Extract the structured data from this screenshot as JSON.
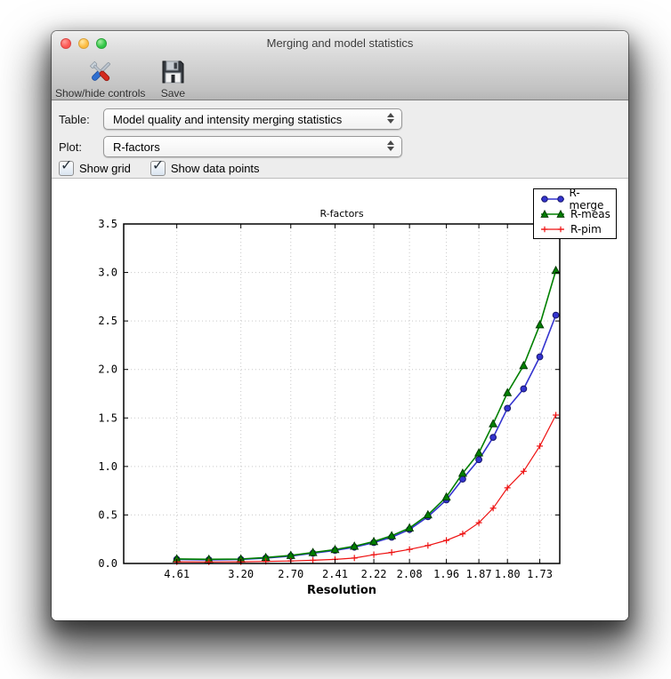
{
  "window": {
    "title": "Merging and model statistics"
  },
  "toolbar": {
    "buttons": [
      {
        "label": "Show/hide controls",
        "icon": "tools-icon"
      },
      {
        "label": "Save",
        "icon": "save-icon"
      }
    ]
  },
  "controls": {
    "table_label": "Table:",
    "table_value": "Model quality and intensity merging statistics",
    "plot_label": "Plot:",
    "plot_value": "R-factors",
    "checkboxes": [
      {
        "label": "Show grid",
        "checked": true
      },
      {
        "label": "Show data points",
        "checked": true
      }
    ]
  },
  "chart_data": {
    "type": "line",
    "title": "R-factors",
    "xlabel": "Resolution",
    "ylabel": "",
    "grid": true,
    "legend_position": "top-right",
    "x_axis_note": "resolution bins, spacing linear in 1/d^2",
    "xlim": [
      0.005,
      0.35
    ],
    "ylim": [
      0.0,
      3.5
    ],
    "yticks": [
      0.0,
      0.5,
      1.0,
      1.5,
      2.0,
      2.5,
      3.0,
      3.5
    ],
    "x": [
      0.047,
      0.0724,
      0.0977,
      0.1174,
      0.1372,
      0.1547,
      0.1722,
      0.1875,
      0.2029,
      0.217,
      0.2311,
      0.2457,
      0.2603,
      0.2732,
      0.286,
      0.2973,
      0.3086,
      0.3214,
      0.3342,
      0.3469
    ],
    "xticks": [
      {
        "index": 0,
        "label": "4.61"
      },
      {
        "index": 2,
        "label": "3.20"
      },
      {
        "index": 4,
        "label": "2.70"
      },
      {
        "index": 6,
        "label": "2.41"
      },
      {
        "index": 8,
        "label": "2.22"
      },
      {
        "index": 10,
        "label": "2.08"
      },
      {
        "index": 12,
        "label": "1.96"
      },
      {
        "index": 14,
        "label": "1.87"
      },
      {
        "index": 16,
        "label": "1.80"
      },
      {
        "index": 18,
        "label": "1.73"
      }
    ],
    "series": [
      {
        "name": "R-merge",
        "color": "#3434cf",
        "edge": "#16166b",
        "marker": "circle",
        "line_width": 1.6,
        "values": [
          0.042,
          0.038,
          0.041,
          0.055,
          0.076,
          0.105,
          0.135,
          0.168,
          0.215,
          0.27,
          0.35,
          0.482,
          0.655,
          0.87,
          1.07,
          1.3,
          1.6,
          1.8,
          2.13,
          2.56
        ]
      },
      {
        "name": "R-meas",
        "color": "#008000",
        "edge": "#003c00",
        "marker": "triangle",
        "line_width": 1.6,
        "values": [
          0.047,
          0.043,
          0.046,
          0.061,
          0.083,
          0.113,
          0.143,
          0.178,
          0.226,
          0.286,
          0.366,
          0.502,
          0.685,
          0.93,
          1.14,
          1.44,
          1.76,
          2.04,
          2.46,
          3.02
        ]
      },
      {
        "name": "R-pim",
        "color": "#ee1111",
        "edge": "#ee1111",
        "marker": "plus",
        "line_width": 1.2,
        "values": [
          0.017,
          0.016,
          0.017,
          0.021,
          0.026,
          0.033,
          0.042,
          0.056,
          0.09,
          0.114,
          0.145,
          0.185,
          0.238,
          0.305,
          0.42,
          0.57,
          0.78,
          0.95,
          1.21,
          1.53
        ]
      }
    ]
  }
}
